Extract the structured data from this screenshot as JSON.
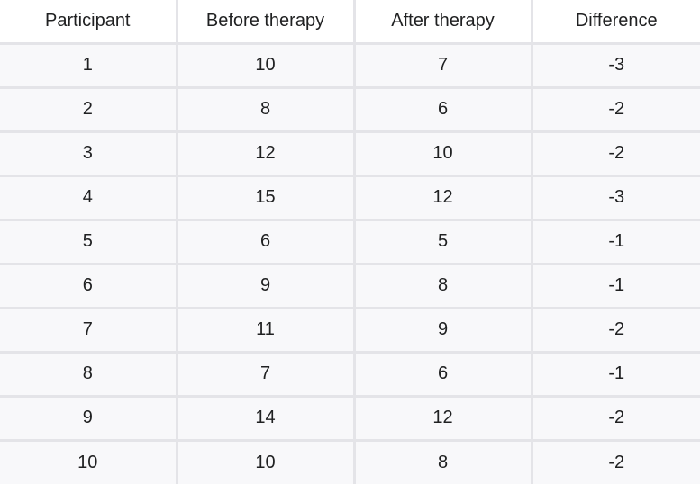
{
  "table": {
    "headers": [
      "Participant",
      "Before therapy",
      "After therapy",
      "Difference"
    ],
    "rows": [
      [
        "1",
        "10",
        "7",
        "-3"
      ],
      [
        "2",
        "8",
        "6",
        "-2"
      ],
      [
        "3",
        "12",
        "10",
        "-2"
      ],
      [
        "4",
        "15",
        "12",
        "-3"
      ],
      [
        "5",
        "6",
        "5",
        "-1"
      ],
      [
        "6",
        "9",
        "8",
        "-1"
      ],
      [
        "7",
        "11",
        "9",
        "-2"
      ],
      [
        "8",
        "7",
        "6",
        "-1"
      ],
      [
        "9",
        "14",
        "12",
        "-2"
      ],
      [
        "10",
        "10",
        "8",
        "-2"
      ]
    ]
  },
  "colors": {
    "header_background": "#ffffff",
    "cell_background": "#f8f8fa",
    "grid_line": "#e4e4e8",
    "text": "#202122"
  }
}
